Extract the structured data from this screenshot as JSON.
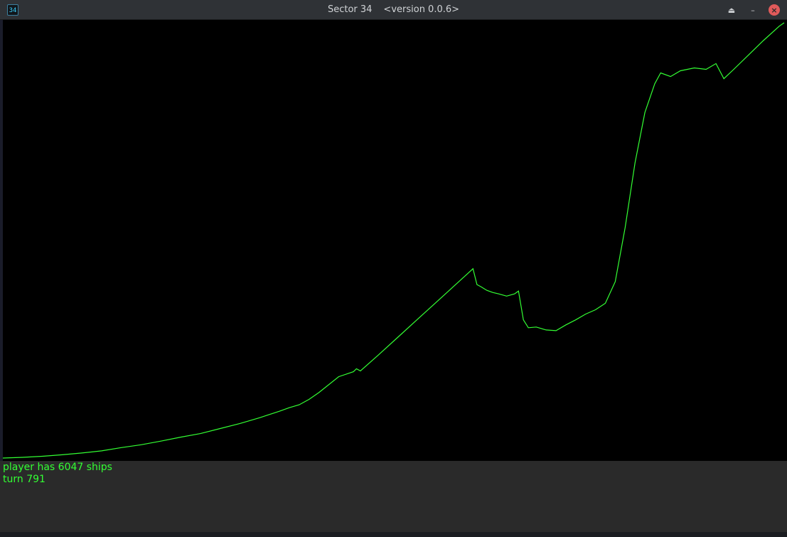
{
  "window": {
    "icon_text": "34",
    "title": "Sector 34",
    "version": "<version 0.0.6>",
    "controls": {
      "maximize_icon": "eject-icon",
      "minimize_icon": "minus-icon",
      "close_icon": "close-icon"
    }
  },
  "status": {
    "line1": "player has 6047 ships",
    "line2": "turn 791"
  },
  "colors": {
    "line": "#33ff33",
    "plot_bg": "#000000",
    "titlebar": "#2f3236",
    "close": "#e05a5a"
  },
  "chart_data": {
    "type": "line",
    "title": "",
    "xlabel": "",
    "ylabel": "",
    "xlim": [
      0,
      791
    ],
    "ylim": [
      0,
      6047
    ],
    "grid": false,
    "series": [
      {
        "values_xy": [
          [
            0,
            0
          ],
          [
            20,
            10
          ],
          [
            40,
            25
          ],
          [
            60,
            45
          ],
          [
            80,
            70
          ],
          [
            100,
            100
          ],
          [
            120,
            145
          ],
          [
            140,
            185
          ],
          [
            160,
            235
          ],
          [
            180,
            290
          ],
          [
            200,
            340
          ],
          [
            220,
            410
          ],
          [
            240,
            480
          ],
          [
            260,
            560
          ],
          [
            280,
            650
          ],
          [
            290,
            700
          ],
          [
            300,
            740
          ],
          [
            310,
            815
          ],
          [
            320,
            910
          ],
          [
            340,
            1130
          ],
          [
            355,
            1200
          ],
          [
            358,
            1240
          ],
          [
            362,
            1210
          ],
          [
            380,
            1430
          ],
          [
            400,
            1680
          ],
          [
            420,
            1930
          ],
          [
            440,
            2180
          ],
          [
            460,
            2430
          ],
          [
            476,
            2630
          ],
          [
            480,
            2410
          ],
          [
            484,
            2380
          ],
          [
            490,
            2330
          ],
          [
            496,
            2300
          ],
          [
            502,
            2280
          ],
          [
            510,
            2250
          ],
          [
            518,
            2280
          ],
          [
            522,
            2320
          ],
          [
            527,
            1920
          ],
          [
            532,
            1810
          ],
          [
            540,
            1820
          ],
          [
            550,
            1780
          ],
          [
            560,
            1770
          ],
          [
            570,
            1850
          ],
          [
            580,
            1920
          ],
          [
            590,
            2000
          ],
          [
            600,
            2060
          ],
          [
            610,
            2150
          ],
          [
            620,
            2450
          ],
          [
            630,
            3200
          ],
          [
            640,
            4100
          ],
          [
            650,
            4800
          ],
          [
            660,
            5200
          ],
          [
            666,
            5350
          ],
          [
            676,
            5300
          ],
          [
            686,
            5380
          ],
          [
            700,
            5420
          ],
          [
            712,
            5400
          ],
          [
            722,
            5480
          ],
          [
            730,
            5270
          ],
          [
            740,
            5400
          ],
          [
            755,
            5600
          ],
          [
            770,
            5800
          ],
          [
            786,
            6000
          ],
          [
            791,
            6047
          ]
        ]
      }
    ]
  }
}
